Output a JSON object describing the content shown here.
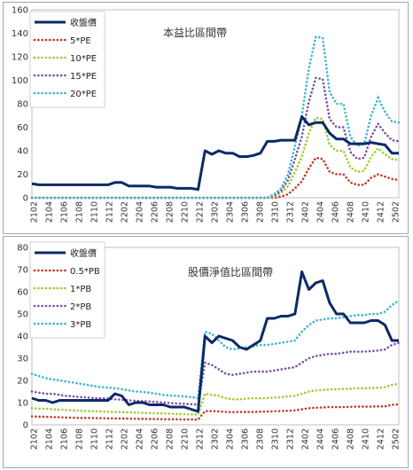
{
  "chart_data": [
    {
      "type": "line",
      "title": "本益比區間帶",
      "ylim": [
        0,
        160
      ],
      "yticks": [
        0,
        20,
        40,
        60,
        80,
        100,
        120,
        140,
        160
      ],
      "x_labels": [
        "2102",
        "2104",
        "2106",
        "2108",
        "2110",
        "2112",
        "2202",
        "2204",
        "2206",
        "2208",
        "2210",
        "2212",
        "2302",
        "2304",
        "2306",
        "2308",
        "2310",
        "2312",
        "2402",
        "2404",
        "2406",
        "2408",
        "2410",
        "2412",
        "2502"
      ],
      "legend_position": "top-left",
      "series": [
        {
          "name": "收盤價",
          "color": "#0b2a66",
          "style": "solid",
          "values": [
            12,
            11,
            11,
            11,
            11,
            11,
            11,
            11,
            11,
            11,
            11,
            11,
            13,
            13,
            10,
            10,
            10,
            10,
            9,
            9,
            9,
            8,
            8,
            8,
            7,
            40,
            37,
            40,
            38,
            38,
            35,
            35,
            36,
            38,
            48,
            48,
            49,
            49,
            49,
            69,
            62,
            64,
            64,
            55,
            50,
            50,
            46,
            46,
            46,
            47,
            46,
            45,
            38,
            38
          ]
        },
        {
          "name": "5*PE",
          "color": "#c0392b",
          "style": "dotted",
          "values": [
            0,
            0,
            0,
            0,
            0,
            0,
            0,
            0,
            0,
            0,
            0,
            0,
            0,
            0,
            0,
            0,
            0,
            0,
            0,
            0,
            0,
            0,
            0,
            0,
            0,
            0,
            0,
            0,
            0,
            0,
            0,
            0,
            0,
            0,
            0,
            0,
            1,
            3,
            8,
            14,
            25,
            34,
            33,
            22,
            20,
            20,
            13,
            11,
            11,
            17,
            20,
            18,
            16,
            15
          ]
        },
        {
          "name": "10*PE",
          "color": "#9acd32",
          "style": "dotted",
          "values": [
            0,
            0,
            0,
            0,
            0,
            0,
            0,
            0,
            0,
            0,
            0,
            0,
            0,
            0,
            0,
            0,
            0,
            0,
            0,
            0,
            0,
            0,
            0,
            0,
            0,
            0,
            0,
            0,
            0,
            0,
            0,
            0,
            0,
            0,
            0,
            1,
            4,
            10,
            22,
            35,
            55,
            68,
            67,
            45,
            40,
            40,
            26,
            22,
            23,
            35,
            42,
            37,
            33,
            32
          ]
        },
        {
          "name": "15*PE",
          "color": "#7b4fa6",
          "style": "dotted",
          "values": [
            0,
            0,
            0,
            0,
            0,
            0,
            0,
            0,
            0,
            0,
            0,
            0,
            0,
            0,
            0,
            0,
            0,
            0,
            0,
            0,
            0,
            0,
            0,
            0,
            0,
            0,
            0,
            0,
            0,
            0,
            0,
            0,
            0,
            0,
            0,
            2,
            6,
            15,
            33,
            52,
            82,
            102,
            101,
            67,
            60,
            60,
            39,
            33,
            34,
            52,
            63,
            55,
            49,
            48
          ]
        },
        {
          "name": "20*PE",
          "color": "#3bb5c9",
          "style": "dotted",
          "values": [
            0,
            0,
            0,
            0,
            0,
            0,
            0,
            0,
            0,
            0,
            0,
            0,
            0,
            0,
            0,
            0,
            0,
            0,
            0,
            0,
            0,
            0,
            0,
            0,
            0,
            0,
            0,
            0,
            0,
            0,
            0,
            0,
            0,
            0,
            0,
            3,
            8,
            20,
            44,
            70,
            110,
            137,
            136,
            90,
            80,
            80,
            52,
            44,
            46,
            70,
            85,
            73,
            65,
            64
          ]
        }
      ]
    },
    {
      "type": "line",
      "title": "股價淨值比區間帶",
      "ylim": [
        0,
        80
      ],
      "yticks": [
        0,
        10,
        20,
        30,
        40,
        50,
        60,
        70,
        80
      ],
      "x_labels": [
        "2102",
        "2104",
        "2106",
        "2108",
        "2110",
        "2112",
        "2202",
        "2204",
        "2206",
        "2208",
        "2210",
        "2212",
        "2302",
        "2304",
        "2306",
        "2308",
        "2310",
        "2312",
        "2402",
        "2404",
        "2406",
        "2408",
        "2410",
        "2412",
        "2502"
      ],
      "legend_position": "top-left",
      "series": [
        {
          "name": "收盤價",
          "color": "#0b2a66",
          "style": "solid",
          "values": [
            12,
            11,
            11,
            10,
            11,
            11,
            11,
            11,
            11,
            11,
            11,
            11,
            14,
            13,
            9,
            10,
            10,
            9,
            9,
            9,
            8,
            8,
            8,
            7,
            6,
            40,
            37,
            40,
            39,
            38,
            35,
            34,
            36,
            38,
            48,
            48,
            49,
            49,
            50,
            69,
            61,
            64,
            65,
            55,
            50,
            50,
            46,
            46,
            46,
            47,
            47,
            45,
            38,
            38
          ]
        },
        {
          "name": "0.5*PB",
          "color": "#c0392b",
          "style": "dotted",
          "values": [
            3.8,
            3.7,
            3.6,
            3.5,
            3.4,
            3.3,
            3.2,
            3.1,
            3.1,
            3.0,
            3.0,
            2.9,
            2.9,
            2.8,
            2.8,
            2.7,
            2.7,
            2.6,
            2.6,
            2.5,
            2.5,
            2.5,
            2.4,
            2.4,
            2.3,
            6.2,
            6.2,
            6.0,
            5.8,
            5.7,
            5.8,
            5.8,
            5.8,
            5.9,
            6.0,
            6.1,
            6.2,
            6.3,
            6.5,
            7.0,
            7.5,
            7.7,
            7.8,
            8.0,
            8.0,
            8.0,
            8.1,
            8.2,
            8.2,
            8.2,
            8.3,
            8.3,
            9.0,
            9.2
          ]
        },
        {
          "name": "1*PB",
          "color": "#9acd32",
          "style": "dotted",
          "values": [
            7.5,
            7.3,
            7.2,
            7.0,
            6.8,
            6.7,
            6.5,
            6.3,
            6.2,
            6.1,
            6.0,
            5.9,
            5.8,
            5.7,
            5.6,
            5.5,
            5.4,
            5.3,
            5.2,
            5.1,
            5.0,
            4.9,
            4.8,
            4.7,
            4.6,
            14,
            13.5,
            13,
            12,
            11.5,
            11.5,
            11.8,
            12,
            12,
            12,
            12.2,
            12.5,
            12.8,
            13,
            14,
            15,
            15.5,
            15.7,
            16,
            16,
            16.2,
            16.3,
            16.5,
            16.5,
            16.6,
            16.7,
            17,
            18,
            18.5
          ]
        },
        {
          "name": "2*PB",
          "color": "#7b4fa6",
          "style": "dotted",
          "values": [
            15,
            14.5,
            14,
            14,
            13.5,
            13,
            12.8,
            12.5,
            12.3,
            12,
            12,
            11.8,
            11.5,
            11.3,
            11,
            10.8,
            10.7,
            10.5,
            10.3,
            10,
            9.8,
            9.6,
            9.5,
            9.3,
            9,
            28,
            27,
            25,
            23,
            22.5,
            23,
            23.5,
            24,
            24,
            24,
            24.5,
            25,
            25.5,
            26,
            28,
            30,
            31,
            31.5,
            32,
            32,
            32.5,
            33,
            33,
            33,
            33.2,
            33.5,
            34,
            36,
            37
          ]
        },
        {
          "name": "3*PB",
          "color": "#3bb5c9",
          "style": "dotted",
          "values": [
            23,
            22,
            21,
            20.5,
            20,
            19.5,
            19,
            18.5,
            18,
            17.5,
            17,
            16.8,
            16.5,
            16,
            15.5,
            15,
            14.8,
            14.5,
            14,
            13.5,
            13.2,
            13,
            12.8,
            12.5,
            12,
            42,
            41,
            38,
            35,
            34,
            34.5,
            35,
            35.5,
            36,
            36,
            36.5,
            37,
            37.5,
            38,
            42,
            45,
            47,
            47.5,
            48,
            48,
            48.5,
            49,
            49.5,
            49.5,
            50,
            50,
            51,
            54,
            56
          ]
        }
      ]
    }
  ]
}
